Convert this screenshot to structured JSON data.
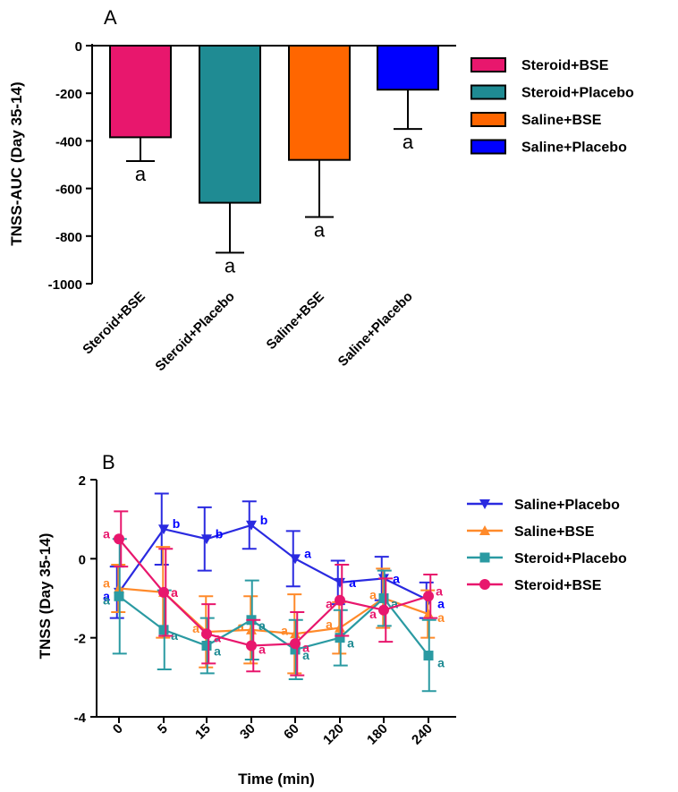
{
  "colors": {
    "steroid_bse": "#e8176d",
    "steroid_placebo": "#1f8b93",
    "saline_bse": "#ff6600",
    "saline_placebo": "#0000ff",
    "line_saline_placebo": "#2a2ae0",
    "line_saline_bse": "#ff8a2a",
    "line_steroid_placebo": "#2a9aa2",
    "line_steroid_bse": "#e8176d"
  },
  "chart_data": [
    {
      "type": "bar",
      "panel_label": "A",
      "ylabel": "TNSS-AUC (Day 35-14)",
      "ylim": [
        -1000,
        0
      ],
      "yticks": [
        "0",
        "-200",
        "-400",
        "-600",
        "-800",
        "-1000"
      ],
      "ytick_values": [
        0,
        -200,
        -400,
        -600,
        -800,
        -1000
      ],
      "categories": [
        "Steroid+BSE",
        "Steroid+Placebo",
        "Saline+BSE",
        "Saline+Placebo"
      ],
      "values": [
        -385,
        -660,
        -480,
        -185
      ],
      "errors": [
        100,
        210,
        240,
        165
      ],
      "annotations": [
        "a",
        "a",
        "a",
        "a"
      ],
      "legend": [
        "Steroid+BSE",
        "Steroid+Placebo",
        "Saline+BSE",
        "Saline+Placebo"
      ],
      "legend_position": "right"
    },
    {
      "type": "line",
      "panel_label": "B",
      "xlabel": "Time (min)",
      "ylabel": "TNSS (Day 35-14)",
      "ylim": [
        -4,
        2
      ],
      "yticks": [
        "2",
        "0",
        "-2",
        "-4"
      ],
      "ytick_values": [
        2,
        0,
        -2,
        -4
      ],
      "categories": [
        "0",
        "5",
        "15",
        "30",
        "60",
        "120",
        "180",
        "240"
      ],
      "legend_position": "right",
      "series": [
        {
          "name": "Saline+Placebo",
          "marker": "triangle-down",
          "values": [
            -0.85,
            0.75,
            0.5,
            0.85,
            0.0,
            -0.6,
            -0.5,
            -1.05
          ],
          "errors": [
            0.65,
            0.9,
            0.8,
            0.6,
            0.7,
            0.55,
            0.55,
            0.45
          ],
          "labels": [
            "a",
            "b",
            "b",
            "b",
            "a",
            "a",
            "a",
            "a"
          ]
        },
        {
          "name": "Saline+BSE",
          "marker": "triangle-up",
          "values": [
            -0.75,
            -0.85,
            -1.85,
            -1.8,
            -1.9,
            -1.75,
            -1.0,
            -1.4
          ],
          "errors": [
            0.6,
            1.15,
            0.9,
            0.85,
            1.0,
            0.65,
            0.75,
            0.6
          ],
          "labels": [
            "a",
            "a",
            "a",
            "a",
            "a",
            "a",
            "a",
            "a"
          ]
        },
        {
          "name": "Steroid+Placebo",
          "marker": "square",
          "values": [
            -0.95,
            -1.8,
            -2.2,
            -1.55,
            -2.3,
            -2.0,
            -1.0,
            -2.45
          ],
          "errors": [
            1.45,
            1.0,
            0.7,
            1.0,
            0.75,
            0.7,
            0.7,
            0.9
          ],
          "labels": [
            "a",
            "a",
            "a",
            "a",
            "a",
            "a",
            "a",
            "a"
          ]
        },
        {
          "name": "Steroid+BSE",
          "marker": "circle",
          "values": [
            0.5,
            -0.85,
            -1.9,
            -2.2,
            -2.15,
            -1.05,
            -1.3,
            -0.95
          ],
          "errors": [
            0.7,
            1.1,
            0.75,
            0.65,
            0.8,
            0.9,
            0.8,
            0.55
          ],
          "labels": [
            "a",
            "a",
            "a",
            "a",
            "a",
            "a",
            "a",
            "a"
          ]
        }
      ]
    }
  ]
}
